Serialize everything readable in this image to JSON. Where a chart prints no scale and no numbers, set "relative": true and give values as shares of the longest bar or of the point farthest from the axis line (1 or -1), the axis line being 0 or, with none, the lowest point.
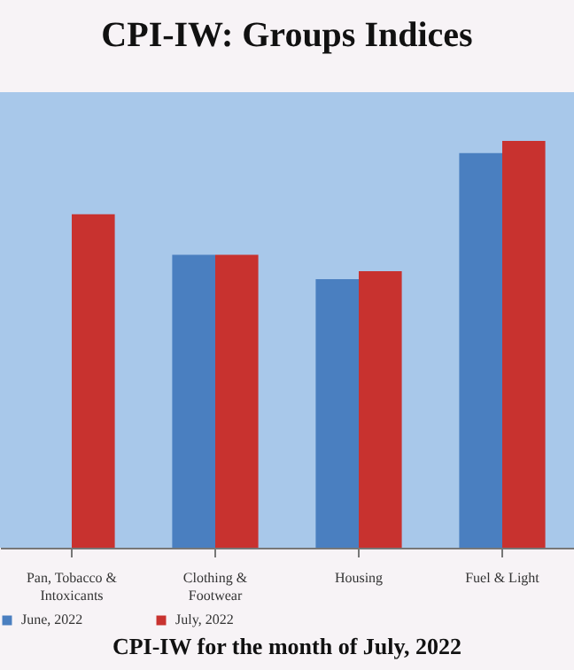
{
  "chart_data": {
    "type": "bar",
    "title": "CPI-IW: Groups Indices",
    "relative": true,
    "categories": [
      "Pan, Tobacco & Intoxicants",
      "Clothing & Footwear",
      "Housing",
      "Fuel & Light"
    ],
    "series": [
      {
        "name": "June, 2022",
        "color": "#4a7fc0",
        "values": [
          null,
          0.72,
          0.66,
          0.97
        ]
      },
      {
        "name": "July, 2022",
        "color": "#c8322f",
        "values": [
          0.82,
          0.72,
          0.68,
          1
        ]
      }
    ],
    "legend": "bottom",
    "annotations": [
      "CPI-IW for the month of July, 2022"
    ]
  }
}
